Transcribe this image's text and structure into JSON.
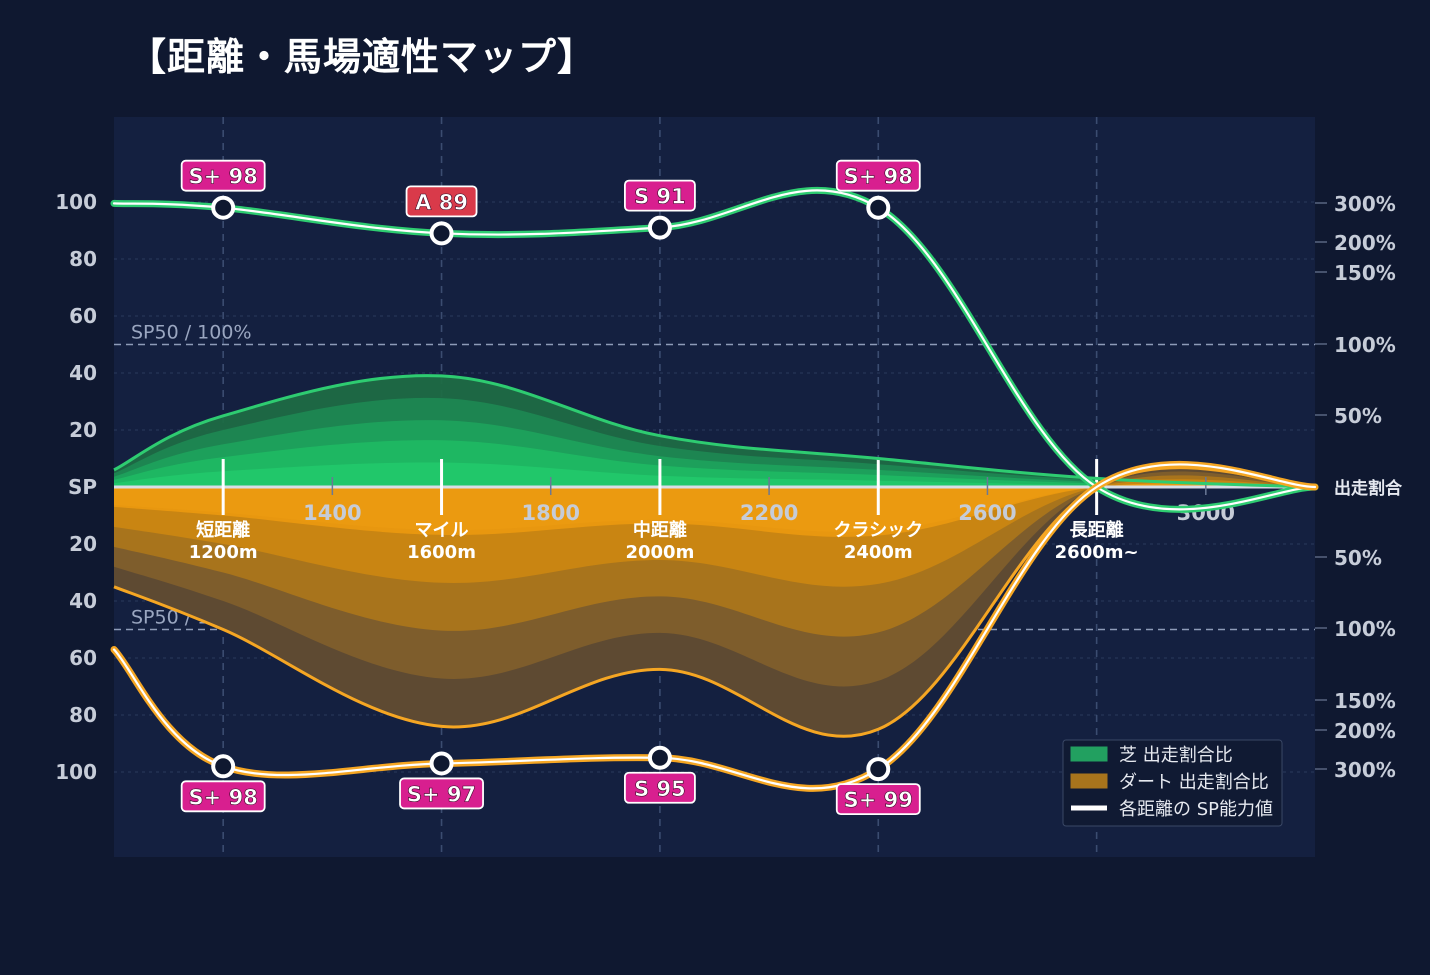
{
  "title": "【距離・馬場適性マップ】",
  "chart_data": {
    "type": "area",
    "center_label": "SP",
    "left_ticks": [
      "100",
      "80",
      "60",
      "40",
      "20",
      "20",
      "40",
      "60",
      "80",
      "100"
    ],
    "left_tick_values": [
      100,
      80,
      60,
      40,
      20,
      -20,
      -40,
      -60,
      -80,
      -100
    ],
    "right_axis_label": "出走割合",
    "right_ticks_top": [
      "300%",
      "200%",
      "150%",
      "100%",
      "50%"
    ],
    "right_ticks_top_values": [
      300,
      200,
      150,
      100,
      50
    ],
    "right_ticks_bottom": [
      "50%",
      "100%",
      "150%",
      "200%",
      "300%"
    ],
    "right_ticks_bottom_values": [
      50,
      100,
      150,
      200,
      300
    ],
    "x_ticks": [
      "1400",
      "1800",
      "2200",
      "2600",
      "3000"
    ],
    "x_tick_values": [
      1400,
      1800,
      2200,
      2600,
      3000
    ],
    "xlim": [
      1000,
      3200
    ],
    "ylim": [
      -130,
      130
    ],
    "ref_line_label": "SP50 / 100%",
    "ref_line_value": 50,
    "categories": [
      {
        "name": "短距離",
        "dist": "1200m",
        "x": 1200
      },
      {
        "name": "マイル",
        "dist": "1600m",
        "x": 1600
      },
      {
        "name": "中距離",
        "dist": "2000m",
        "x": 2000
      },
      {
        "name": "クラシック",
        "dist": "2400m",
        "x": 2400
      },
      {
        "name": "長距離",
        "dist": "2600m~",
        "x": 2800
      }
    ],
    "series": [
      {
        "name": "芝 SP",
        "side": "top",
        "x": [
          1000,
          1200,
          1600,
          2000,
          2400,
          2800,
          3200
        ],
        "values": [
          99.5,
          98,
          89,
          91,
          98,
          0,
          0
        ],
        "points": [
          {
            "x": 1200,
            "value": 98,
            "label": "S+ 98",
            "color": "#d81f8f"
          },
          {
            "x": 1600,
            "value": 89,
            "label": "A 89",
            "color": "#d93a4a"
          },
          {
            "x": 2000,
            "value": 91,
            "label": "S 91",
            "color": "#d81f8f"
          },
          {
            "x": 2400,
            "value": 98,
            "label": "S+ 98",
            "color": "#d81f8f"
          }
        ]
      },
      {
        "name": "ダート SP",
        "side": "bottom",
        "x": [
          1000,
          1200,
          1600,
          2000,
          2400,
          2800,
          3200
        ],
        "values": [
          57,
          98,
          97,
          95,
          99,
          0,
          0
        ],
        "points": [
          {
            "x": 1200,
            "value": 98,
            "label": "S+ 98",
            "color": "#d81f8f"
          },
          {
            "x": 1600,
            "value": 97,
            "label": "S+ 97",
            "color": "#d81f8f"
          },
          {
            "x": 2000,
            "value": 95,
            "label": "S 95",
            "color": "#d81f8f"
          },
          {
            "x": 2400,
            "value": 99,
            "label": "S+ 99",
            "color": "#d81f8f"
          }
        ]
      },
      {
        "name": "芝 出走割合比",
        "side": "top",
        "x": [
          1000,
          1200,
          1600,
          2000,
          2400,
          2800,
          3200
        ],
        "values": [
          6,
          25,
          39,
          18,
          10,
          3,
          0
        ]
      },
      {
        "name": "ダート 出走割合比",
        "side": "bottom",
        "x": [
          1000,
          1200,
          1600,
          2000,
          2400,
          2800,
          3200
        ],
        "values": [
          35,
          50,
          84,
          64,
          85,
          0,
          0
        ]
      }
    ],
    "legend": {
      "position": "bottom-right",
      "items": [
        {
          "label": "芝 出走割合比",
          "color": "#22a060",
          "kind": "area"
        },
        {
          "label": "ダート 出走割合比",
          "color": "#a8741c",
          "kind": "area"
        },
        {
          "label": "各距離の SP能力値",
          "color": "#ffffff",
          "kind": "line"
        }
      ]
    },
    "colors": {
      "background": "#0f1830",
      "plot_bg": "#142040",
      "turf": "#2ecc71",
      "dirt": "#f5a623",
      "turf_fill": "#1fbf5e",
      "dirt_fill": "#e8970f",
      "badge_pink": "#d81f8f",
      "badge_red": "#d93a4a",
      "text_axis": "#c6ccd8"
    },
    "grid": true
  }
}
